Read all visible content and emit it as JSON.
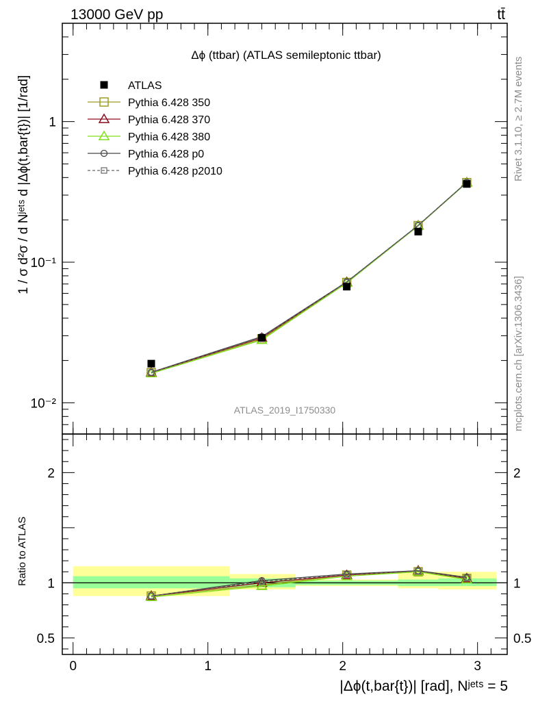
{
  "header": {
    "left": "13000 GeV pp",
    "right": "tt̄"
  },
  "side_labels": {
    "rivet": "Rivet 3.1.10, ≥ 2.7M events",
    "mcplots": "mcplots.cern.ch [arXiv:1306.3436]"
  },
  "chart_data": [
    {
      "type": "scatter",
      "title": "Δϕ (ttbar) (ATLAS semileptonic ttbar)",
      "analysis_label": "ATLAS_2019_I1750330",
      "ylabel": "1 / σ d²σ / d Nʲᵉᵗˢ d |Δϕ(t,bar{t})| [1/rad]",
      "yscale": "log",
      "ylim": [
        0.006,
        5.0
      ],
      "xlim": [
        -0.08,
        3.22
      ],
      "y_ticks": [
        {
          "value": 0.01,
          "label": "10⁻²"
        },
        {
          "value": 0.1,
          "label": "10⁻¹"
        },
        {
          "value": 1,
          "label": "1"
        }
      ],
      "legend_position": "top-left",
      "x": [
        0.58,
        1.4,
        2.03,
        2.56,
        2.92
      ],
      "x_edges": [
        0.0,
        1.16,
        1.65,
        2.41,
        2.71,
        3.1416
      ],
      "series": [
        {
          "name": "ATLAS",
          "color": "#000000",
          "marker": "filled-square",
          "values": [
            0.019,
            0.029,
            0.067,
            0.165,
            0.36
          ]
        },
        {
          "name": "Pythia 6.428 350",
          "color": "#9a9a20",
          "marker": "open-square",
          "line": "solid",
          "values": [
            0.0164,
            0.0285,
            0.0718,
            0.182,
            0.368
          ]
        },
        {
          "name": "Pythia 6.428 370",
          "color": "#8b0a1c",
          "marker": "open-triangle",
          "line": "solid",
          "values": [
            0.0164,
            0.029,
            0.0722,
            0.1825,
            0.369
          ]
        },
        {
          "name": "Pythia 6.428 380",
          "color": "#7fe01a",
          "marker": "open-triangle",
          "line": "solid",
          "values": [
            0.0162,
            0.028,
            0.0712,
            0.1815,
            0.367
          ]
        },
        {
          "name": "Pythia 6.428 p0",
          "color": "#444444",
          "marker": "open-circle",
          "line": "solid",
          "values": [
            0.0165,
            0.0296,
            0.0725,
            0.183,
            0.37
          ]
        },
        {
          "name": "Pythia 6.428 p2010",
          "color": "#666666",
          "marker": "open-square-small",
          "line": "dashed",
          "values": [
            0.0164,
            0.0292,
            0.072,
            0.1822,
            0.3685
          ]
        }
      ]
    },
    {
      "type": "scatter",
      "ylabel": "Ratio to ATLAS",
      "xlabel": "|Δϕ(t,bar{t})| [rad], Nʲᵉᵗˢ = 5",
      "ylim": [
        0.35,
        2.35
      ],
      "xlim": [
        -0.08,
        3.22
      ],
      "y_ticks": [
        {
          "value": 0.5,
          "label": "0.5"
        },
        {
          "value": 1,
          "label": "1"
        },
        {
          "value": 2,
          "label": "2"
        }
      ],
      "x_ticks": [
        {
          "value": 0,
          "label": "0"
        },
        {
          "value": 1,
          "label": "1"
        },
        {
          "value": 2,
          "label": "2"
        },
        {
          "value": 3,
          "label": "3"
        }
      ],
      "bands": {
        "x_edges": [
          0.0,
          1.16,
          1.65,
          2.41,
          2.71,
          3.1416
        ],
        "inner_color": "#99ff99",
        "outer_color": "#ffff99",
        "inner": [
          [
            0.95,
            1.06
          ],
          [
            0.96,
            1.04
          ],
          [
            0.98,
            1.02
          ],
          [
            0.97,
            1.03
          ],
          [
            0.97,
            1.04
          ]
        ],
        "outer": [
          [
            0.88,
            1.15
          ],
          [
            0.94,
            1.08
          ],
          [
            0.97,
            1.03
          ],
          [
            0.95,
            1.1
          ],
          [
            0.94,
            1.1
          ]
        ]
      },
      "x": [
        0.58,
        1.4,
        2.03,
        2.56,
        2.92
      ],
      "series": [
        {
          "name": "Pythia 6.428 350",
          "values": [
            0.88,
            0.98,
            1.07,
            1.1,
            1.04
          ]
        },
        {
          "name": "Pythia 6.428 370",
          "values": [
            0.88,
            1.0,
            1.07,
            1.11,
            1.04
          ]
        },
        {
          "name": "Pythia 6.428 380",
          "values": [
            0.87,
            0.97,
            1.06,
            1.1,
            1.03
          ]
        },
        {
          "name": "Pythia 6.428 p0",
          "values": [
            0.88,
            1.02,
            1.08,
            1.11,
            1.05
          ]
        },
        {
          "name": "Pythia 6.428 p2010",
          "values": [
            0.88,
            1.01,
            1.075,
            1.105,
            1.045
          ]
        }
      ]
    }
  ]
}
